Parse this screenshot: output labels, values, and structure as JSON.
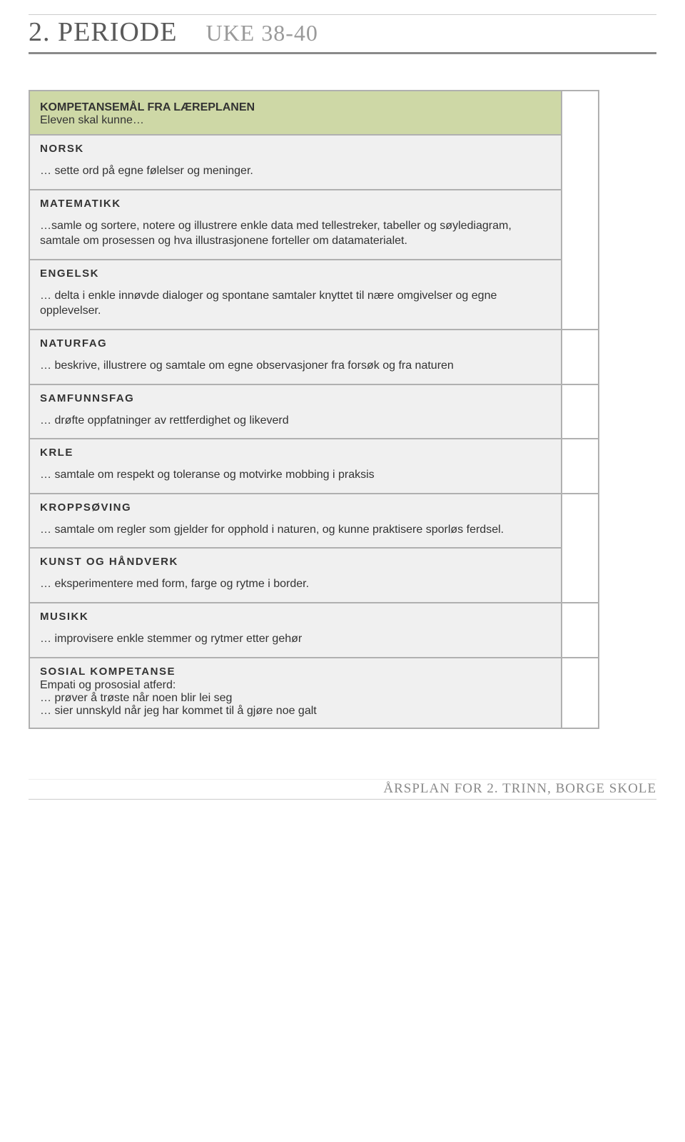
{
  "header": {
    "period": "2. PERIODE",
    "weeks": "UKE 38-40"
  },
  "intro": {
    "title": "KOMPETANSEMÅL FRA LÆREPLANEN",
    "subtitle": "Eleven skal kunne…"
  },
  "subjects": [
    {
      "name": "NORSK",
      "desc": "… sette ord på egne følelser og meninger."
    },
    {
      "name": "MATEMATIKK",
      "desc": "…samle og sortere, notere og illustrere enkle data med tellestreker, tabeller og søylediagram, samtale om prosessen og hva illustrasjonene forteller om datamaterialet."
    },
    {
      "name": "ENGELSK",
      "desc": "… delta i enkle innøvde dialoger og spontane samtaler knyttet til nære omgivelser og egne opplevelser."
    },
    {
      "name": "NATURFAG",
      "desc": "… beskrive, illustrere og samtale om egne observasjoner fra forsøk og fra naturen"
    },
    {
      "name": "SAMFUNNSFAG",
      "desc": "… drøfte oppfatninger av rettferdighet og likeverd"
    },
    {
      "name": "KRLE",
      "desc": "… samtale om respekt og toleranse og motvirke mobbing i praksis"
    },
    {
      "name": "KROPPSØVING",
      "desc": "… samtale om regler som gjelder for opphold i naturen, og kunne praktisere sporløs ferdsel."
    },
    {
      "name": "KUNST OG HÅNDVERK",
      "desc": "… eksperimentere med form, farge og rytme i border."
    },
    {
      "name": "MUSIKK",
      "desc": "… improvisere enkle stemmer og rytmer etter gehør"
    }
  ],
  "sosial": {
    "title": "SOSIAL KOMPETANSE",
    "subtitle": "Empati og prososial atferd:",
    "items": [
      "… prøver å trøste når noen blir lei seg",
      "… sier unnskyld når jeg har kommet til å gjøre noe galt"
    ]
  },
  "footer": "ÅRSPLAN FOR 2. TRINN, BORGE SKOLE",
  "colors": {
    "header_green": "#ced8a6",
    "cell_grey": "#f0f0f0",
    "border": "#b0b0b0",
    "title_grey": "#5a5a5a",
    "subtitle_grey": "#9a9a9a"
  }
}
